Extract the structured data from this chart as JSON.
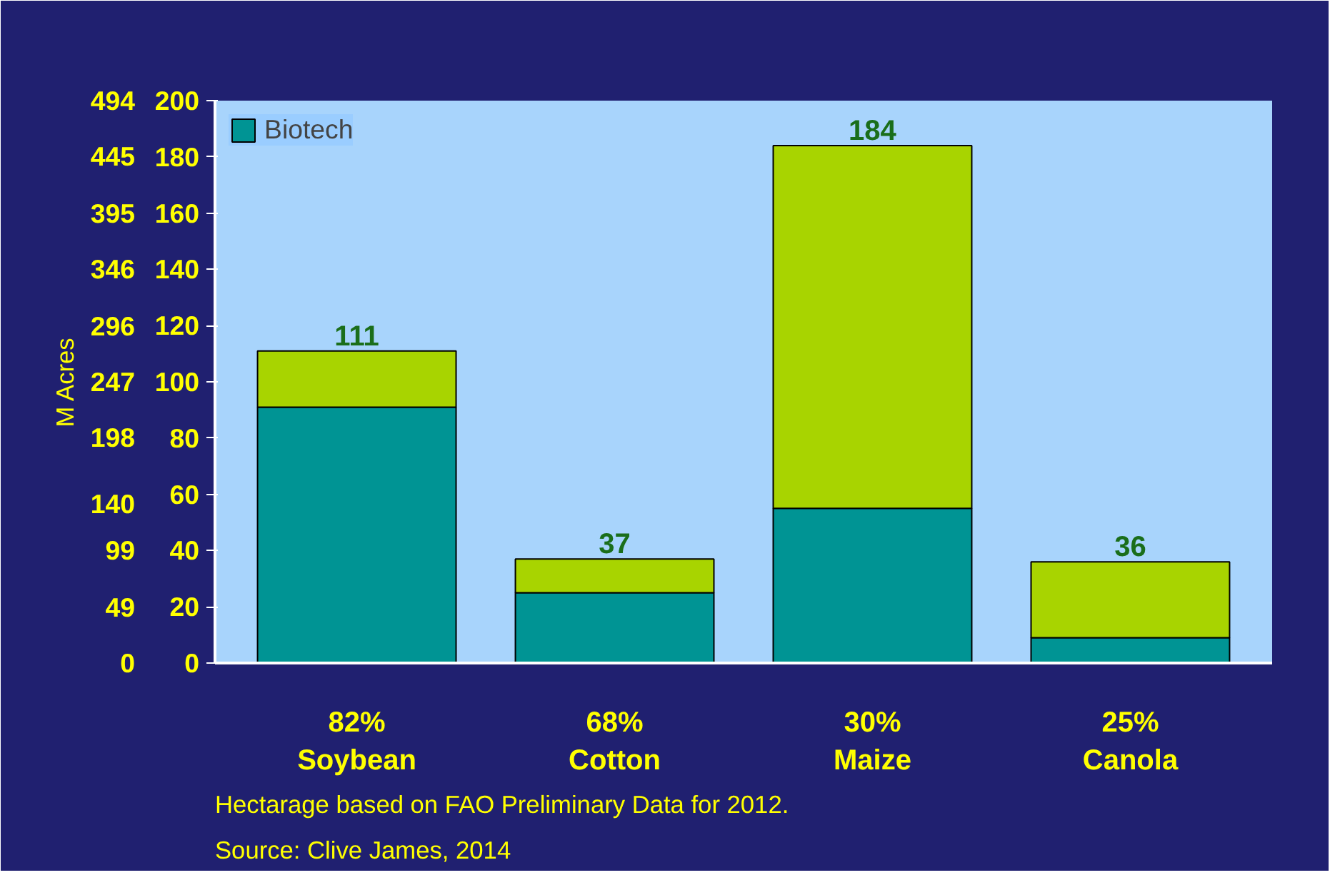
{
  "chart_data": {
    "type": "bar",
    "stacked": true,
    "categories": [
      "82%\nSoybean",
      "68%\nCotton",
      "30%\nMaize",
      "25%\nCanola"
    ],
    "series": [
      {
        "name": "Biotech",
        "color": "#009494",
        "values": [
          91,
          25,
          55,
          9
        ]
      },
      {
        "color": "#a8d400",
        "values": [
          20,
          12,
          129,
          27
        ]
      }
    ],
    "totals": [
      "111",
      "37",
      "184",
      "36"
    ],
    "ylim": [
      0,
      200
    ],
    "yticks": [
      0,
      20,
      40,
      60,
      80,
      100,
      120,
      140,
      160,
      180,
      200
    ],
    "y2label": "M Acres",
    "y2lim": [
      0,
      494
    ],
    "y2ticks": [
      0,
      49,
      99,
      140,
      198,
      247,
      296,
      346,
      395,
      445,
      494
    ],
    "legend": "top left",
    "grid": false,
    "annotations": [
      "Source: Clive James, 2014",
      "Hectarage based on FAO Preliminary Data for 2012."
    ]
  }
}
